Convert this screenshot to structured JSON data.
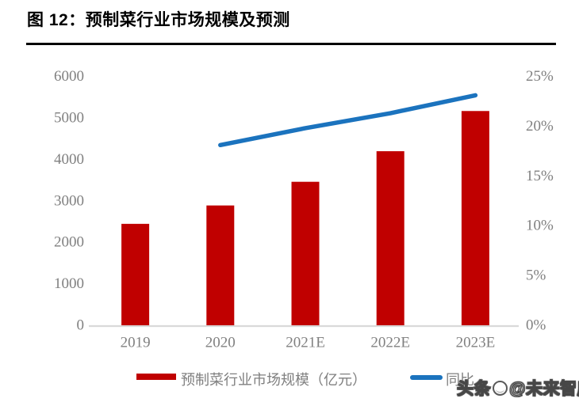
{
  "title": "图 12：预制菜行业市场规模及预测",
  "legend": {
    "bar_label": "预制菜行业市场规模（亿元）",
    "line_label": "同比"
  },
  "watermark": {
    "prefix": "头条",
    "logo": "toutiao-circle-logo",
    "suffix": "@未来智库"
  },
  "colors": {
    "bar": "#c00000",
    "line": "#1b73be",
    "axis_line": "#d9d9d9",
    "tick_text": "#808080",
    "legend_text": "#7f7f7f",
    "title_text": "#000000"
  },
  "chart_data": {
    "type": "bar",
    "title": "预制菜行业市场规模及预测",
    "categories": [
      "2019",
      "2020",
      "2021E",
      "2022E",
      "2023E"
    ],
    "series": [
      {
        "name": "预制菜行业市场规模（亿元）",
        "type": "bar",
        "axis": "left",
        "values": [
          2445,
          2888,
          3459,
          4196,
          5165
        ]
      },
      {
        "name": "同比",
        "type": "line",
        "axis": "right",
        "unit": "%",
        "values": [
          null,
          18.1,
          19.8,
          21.3,
          23.1
        ]
      }
    ],
    "left_axis": {
      "min": 0,
      "max": 6000,
      "step": 1000,
      "tick_labels": [
        "0",
        "1000",
        "2000",
        "3000",
        "4000",
        "5000",
        "6000"
      ]
    },
    "right_axis": {
      "min": 0,
      "max": 25,
      "step": 5,
      "tick_labels": [
        "0%",
        "5%",
        "10%",
        "15%",
        "20%",
        "25%"
      ]
    },
    "grid": false,
    "legend_position": "bottom"
  }
}
